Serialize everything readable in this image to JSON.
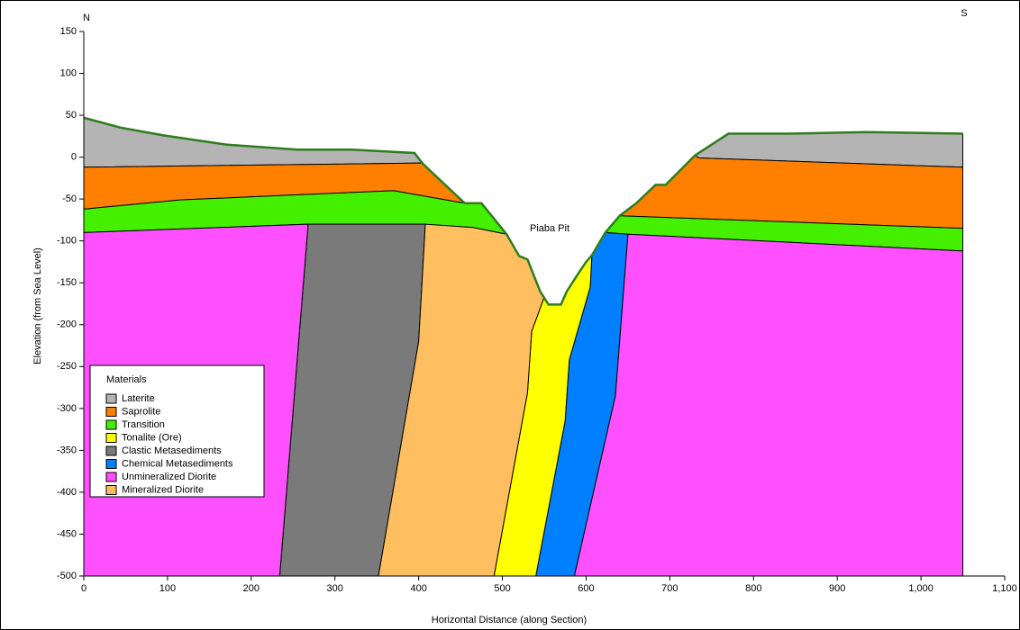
{
  "chart_data": {
    "type": "section",
    "x_label": "Horizontal Distance (along Section)",
    "y_label": "Elevation (from Sea Level)",
    "annotations": [
      "N",
      "S",
      "Piaba Pit"
    ],
    "legend_title": "Materials",
    "legend": "lower left",
    "xlim": [
      0,
      1100
    ],
    "ylim": [
      -500,
      150
    ],
    "xticks": [
      0,
      100,
      200,
      300,
      400,
      500,
      600,
      700,
      800,
      900,
      {
        "value": 1000,
        "label": "1,000"
      },
      {
        "value": 1100,
        "label": "1,100"
      }
    ],
    "yticks": [
      -500,
      -450,
      -400,
      -350,
      -300,
      -250,
      -200,
      -150,
      -100,
      -50,
      0,
      50,
      100,
      150
    ],
    "series": [
      {
        "name": "Laterite",
        "color": "#b4b4b4",
        "polygons": [
          {
            "x": [
              0,
              45,
              95,
              170,
              255,
              320,
              395,
              405,
              405,
              0
            ],
            "y": [
              47,
              35,
              26,
              15,
              9,
              9,
              5,
              -8,
              -7,
              -12
            ]
          },
          {
            "x": [
              730,
              770,
              840,
              935,
              1050,
              1050,
              735
            ],
            "y": [
              2,
              28,
              28,
              30,
              28,
              -12,
              -1
            ]
          }
        ]
      },
      {
        "name": "Saprolite",
        "color": "#ff8000",
        "polygons": [
          {
            "x": [
              0,
              405,
              455,
              370,
              115,
              0
            ],
            "y": [
              -12,
              -7,
              -55,
              -40,
              -51,
              -62
            ]
          },
          {
            "x": [
              640,
              660,
              683,
              695,
              730,
              735,
              1050,
              1050
            ],
            "y": [
              -70,
              -55,
              -33,
              -33,
              2,
              -1,
              -12,
              -85
            ]
          }
        ]
      },
      {
        "name": "Transition",
        "color": "#44f000",
        "polygons": [
          {
            "x": [
              0,
              115,
              370,
              455,
              475,
              505,
              465,
              405,
              268,
              0
            ],
            "y": [
              -62,
              -51,
              -40,
              -55,
              -55,
              -92,
              -84,
              -80,
              -80,
              -90
            ]
          },
          {
            "x": [
              623,
              640,
              1050,
              1050,
              650
            ],
            "y": [
              -90,
              -70,
              -85,
              -112,
              -92
            ]
          }
        ]
      },
      {
        "name": "Tonalite (Ore)",
        "color": "#ffff00",
        "polygons": [
          {
            "x": [
              545,
              555,
              570,
              577,
              590,
              600,
              607,
              605,
              580,
              575,
              540,
              490,
              530,
              535,
              550
            ],
            "y": [
              -160,
              -176,
              -176,
              -160,
              -140,
              -125,
              -117,
              -155,
              -242,
              -315,
              -500,
              -500,
              -281,
              -208,
              -167
            ]
          }
        ]
      },
      {
        "name": "Clastic Metasediments",
        "color": "#7a7a7a",
        "polygons": [
          {
            "x": [
              268,
              408,
              400,
              352,
              234
            ],
            "y": [
              -80,
              -80,
              -220,
              -500,
              -500
            ]
          }
        ]
      },
      {
        "name": "Chemical Metasediments",
        "color": "#0080ff",
        "polygons": [
          {
            "x": [
              607,
              623,
              650,
              635,
              586,
              540,
              575,
              580,
              605
            ],
            "y": [
              -117,
              -90,
              -92,
              -285,
              -500,
              -500,
              -315,
              -242,
              -155
            ]
          }
        ]
      },
      {
        "name": "Unmineralized Diorite",
        "color": "#ff50ff",
        "polygons": [
          {
            "x": [
              0,
              268,
              234,
              0
            ],
            "y": [
              -90,
              -80,
              -500,
              -500
            ]
          },
          {
            "x": [
              650,
              1050,
              1050,
              586,
              635
            ],
            "y": [
              -92,
              -112,
              -500,
              -500,
              -285
            ]
          }
        ]
      },
      {
        "name": "Mineralized Diorite",
        "color": "#ffbf60",
        "polygons": [
          {
            "x": [
              408,
              465,
              505,
              520,
              530,
              545,
              550,
              535,
              530,
              490,
              352,
              400
            ],
            "y": [
              -80,
              -84,
              -92,
              -118,
              -122,
              -160,
              -167,
              -208,
              -281,
              -500,
              -500,
              -220
            ]
          }
        ]
      }
    ],
    "ground_surface": {
      "color": "#2e7d1e",
      "x": [
        0,
        45,
        95,
        170,
        255,
        320,
        395,
        405,
        455,
        475,
        505,
        520,
        530,
        545,
        555,
        570,
        577,
        590,
        600,
        607,
        623,
        640,
        660,
        683,
        695,
        730,
        770,
        840,
        935,
        1050
      ],
      "y": [
        47,
        35,
        26,
        15,
        9,
        9,
        5,
        -8,
        -55,
        -55,
        -92,
        -118,
        -122,
        -160,
        -176,
        -176,
        -160,
        -140,
        -125,
        -117,
        -90,
        -70,
        -55,
        -33,
        -33,
        2,
        28,
        28,
        30,
        28
      ]
    }
  }
}
